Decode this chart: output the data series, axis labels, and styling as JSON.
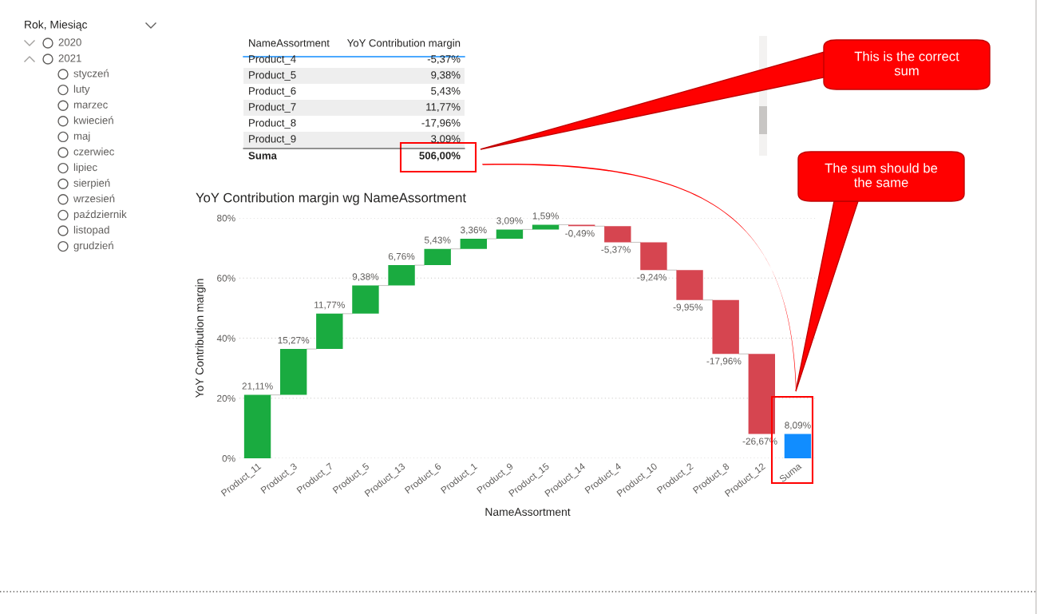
{
  "chart_data": [
    {
      "type": "other",
      "title": "Rok, Miesiąc",
      "annotations": [
        "2020",
        "2021",
        "styczeń",
        "luty",
        "marzec",
        "kwiecień",
        "maj",
        "czerwiec",
        "lipiec",
        "sierpień",
        "wrzesień",
        "październik",
        "listopad",
        "grudzień"
      ]
    },
    {
      "type": "other",
      "categories": [
        "NameAssortment",
        "YoY Contribution margin"
      ],
      "annotations": [
        "Product_4",
        "-5,37%",
        "Product_5",
        "9,38%",
        "Product_6",
        "5,43%",
        "Product_7",
        "11,77%",
        "Product_8",
        "-17,96%",
        "Product_9",
        "3,09%",
        "Suma",
        "506,00%"
      ]
    },
    {
      "type": "bar",
      "title": "YoY Contribution margin wg NameAssortment",
      "xlabel": "NameAssortment",
      "ylabel": "YoY Contribution margin",
      "categories": [
        "Product_11",
        "Product_3",
        "Product_7",
        "Product_5",
        "Product_13",
        "Product_6",
        "Product_1",
        "Product_9",
        "Product_15",
        "Product_14",
        "Product_4",
        "Product_10",
        "Product_2",
        "Product_8",
        "Product_12",
        "Suma"
      ],
      "values": [
        21.11,
        15.27,
        11.77,
        9.38,
        6.76,
        5.43,
        3.36,
        3.09,
        1.59,
        -0.49,
        -5.37,
        -9.24,
        -9.95,
        -17.96,
        -26.67,
        8.09
      ],
      "base": [
        0,
        21.11,
        36.38,
        48.15,
        57.53,
        64.29,
        69.72,
        73.08,
        76.17,
        77.76,
        77.27,
        71.9,
        62.66,
        52.71,
        34.75,
        0
      ],
      "value_labels": [
        "21,11%",
        "15,27%",
        "11,77%",
        "9,38%",
        "6,76%",
        "5,43%",
        "3,36%",
        "3,09%",
        "1,59%",
        "-0,49%",
        "-5,37%",
        "-9,24%",
        "-9,95%",
        "-17,96%",
        "-26,67%",
        "8,09%"
      ],
      "colors": [
        "#1aab40",
        "#1aab40",
        "#1aab40",
        "#1aab40",
        "#1aab40",
        "#1aab40",
        "#1aab40",
        "#1aab40",
        "#1aab40",
        "#d64550",
        "#d64550",
        "#d64550",
        "#d64550",
        "#d64550",
        "#d64550",
        "#118dff"
      ],
      "ylim": [
        0,
        80
      ],
      "yticks": [
        {
          "value": 0,
          "label": "0%"
        },
        {
          "value": 20,
          "label": "20%"
        },
        {
          "value": 40,
          "label": "40%"
        },
        {
          "value": 60,
          "label": "60%"
        },
        {
          "value": 80,
          "label": "80%"
        }
      ],
      "grid": "y",
      "legend": false,
      "annotations": [
        "This is the correct\nsum",
        "The sum should be\nthe same"
      ]
    }
  ]
}
